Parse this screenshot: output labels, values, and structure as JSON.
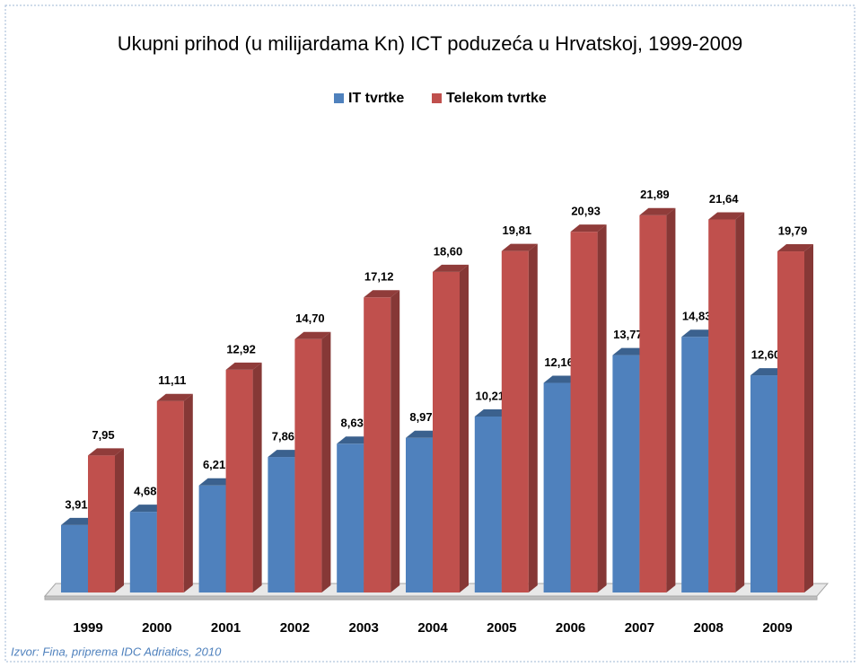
{
  "chart_data": {
    "type": "bar3d",
    "title": "Ukupni prihod (u milijardama Kn) ICT poduzeća u Hrvatskoj, 1999-2009",
    "categories": [
      "1999",
      "2000",
      "2001",
      "2002",
      "2003",
      "2004",
      "2005",
      "2006",
      "2007",
      "2008",
      "2009"
    ],
    "series": [
      {
        "name": "IT tvrtke",
        "color": "#4f81bd",
        "values": [
          3.91,
          4.68,
          6.21,
          7.86,
          8.63,
          8.97,
          10.21,
          12.16,
          13.77,
          14.83,
          12.6
        ],
        "value_labels": [
          "3,91",
          "4,68",
          "6,21",
          "7,86",
          "8,63",
          "8,97",
          "10,21",
          "12,16",
          "13,77",
          "14,83",
          "12,60"
        ]
      },
      {
        "name": "Telekom tvrtke",
        "color": "#c0504d",
        "values": [
          7.95,
          11.11,
          12.92,
          14.7,
          17.12,
          18.6,
          19.81,
          20.93,
          21.89,
          21.64,
          19.79
        ],
        "value_labels": [
          "7,95",
          "11,11",
          "12,92",
          "14,70",
          "17,12",
          "18,60",
          "19,81",
          "20,93",
          "21,89",
          "21,64",
          "19,79"
        ]
      }
    ],
    "legend": "top",
    "source": "Izvor: Fina, priprema IDC Adriatics, 2010"
  }
}
